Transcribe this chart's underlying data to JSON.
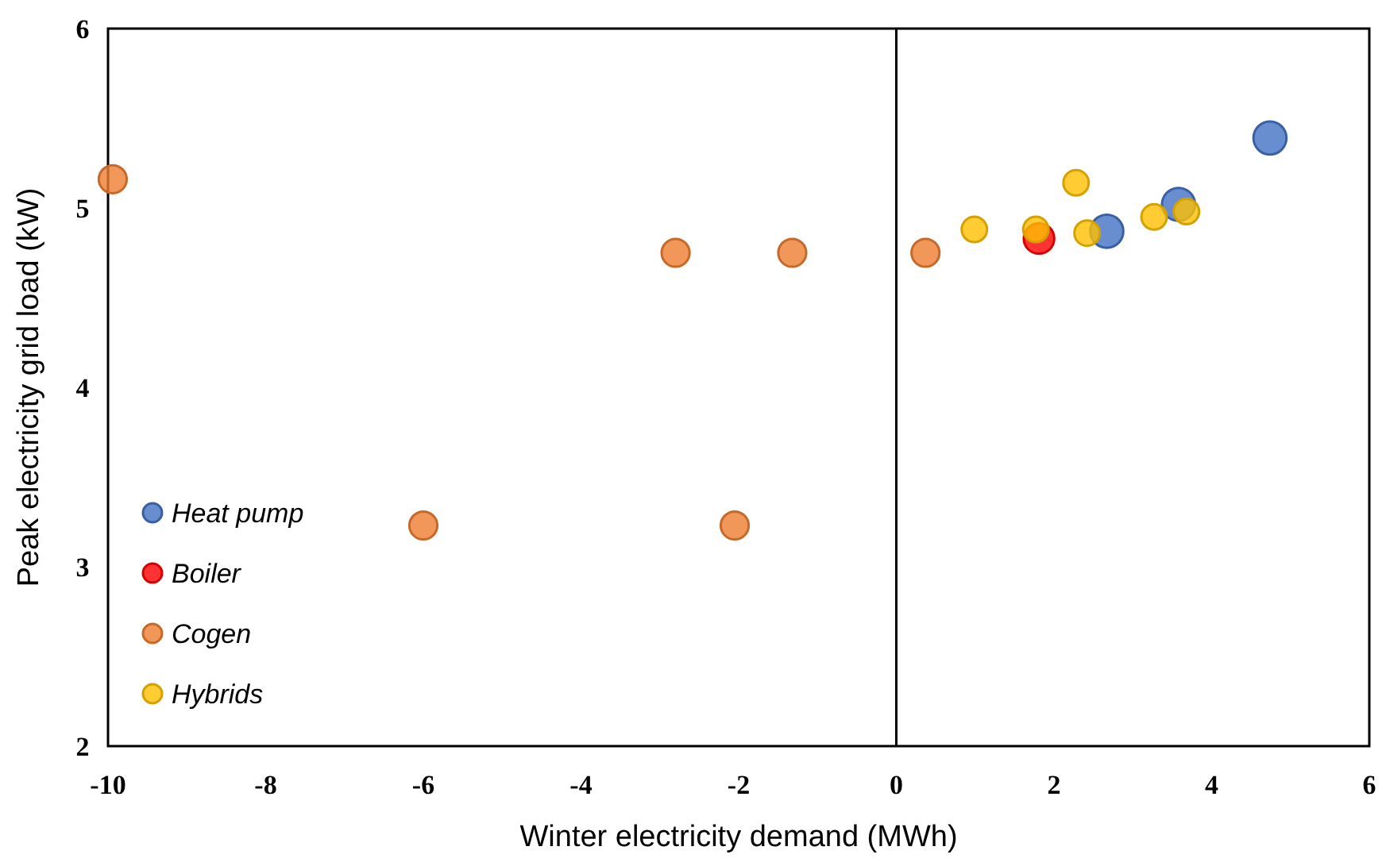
{
  "chart_data": {
    "type": "scatter",
    "xlabel": "Winter electricity demand (MWh)",
    "ylabel": "Peak electricity grid load (kW)",
    "xlim": [
      -10,
      6
    ],
    "xticks": [
      -10,
      -8,
      -6,
      -4,
      -2,
      0,
      2,
      4,
      6
    ],
    "ylim": [
      2,
      6
    ],
    "yticks": [
      2,
      3,
      4,
      5,
      6
    ],
    "grid": false,
    "legend": "bottom left",
    "marker": "circle",
    "ref_lines": [
      {
        "axis": "x",
        "value": 0,
        "color": "#000000"
      }
    ],
    "series": [
      {
        "name": "Heat pump",
        "color": "#4472c4",
        "x": [
          4.74,
          3.58,
          2.67
        ],
        "values": [
          5.39,
          5.02,
          4.87
        ]
      },
      {
        "name": "Boiler",
        "color": "#ff0000",
        "x": [
          1.81
        ],
        "values": [
          4.83
        ]
      },
      {
        "name": "Cogen",
        "color": "#ed7d31",
        "x": [
          -9.94,
          -2.8,
          -1.32,
          0.37,
          -6.0,
          -2.05
        ],
        "values": [
          5.16,
          4.75,
          4.75,
          4.75,
          3.23,
          3.23
        ]
      },
      {
        "name": "Hybrids",
        "color": "#ffc000",
        "x": [
          0.99,
          1.77,
          2.28,
          2.42,
          3.27,
          3.68
        ],
        "values": [
          4.88,
          4.88,
          5.14,
          4.86,
          4.95,
          4.98
        ]
      }
    ]
  }
}
